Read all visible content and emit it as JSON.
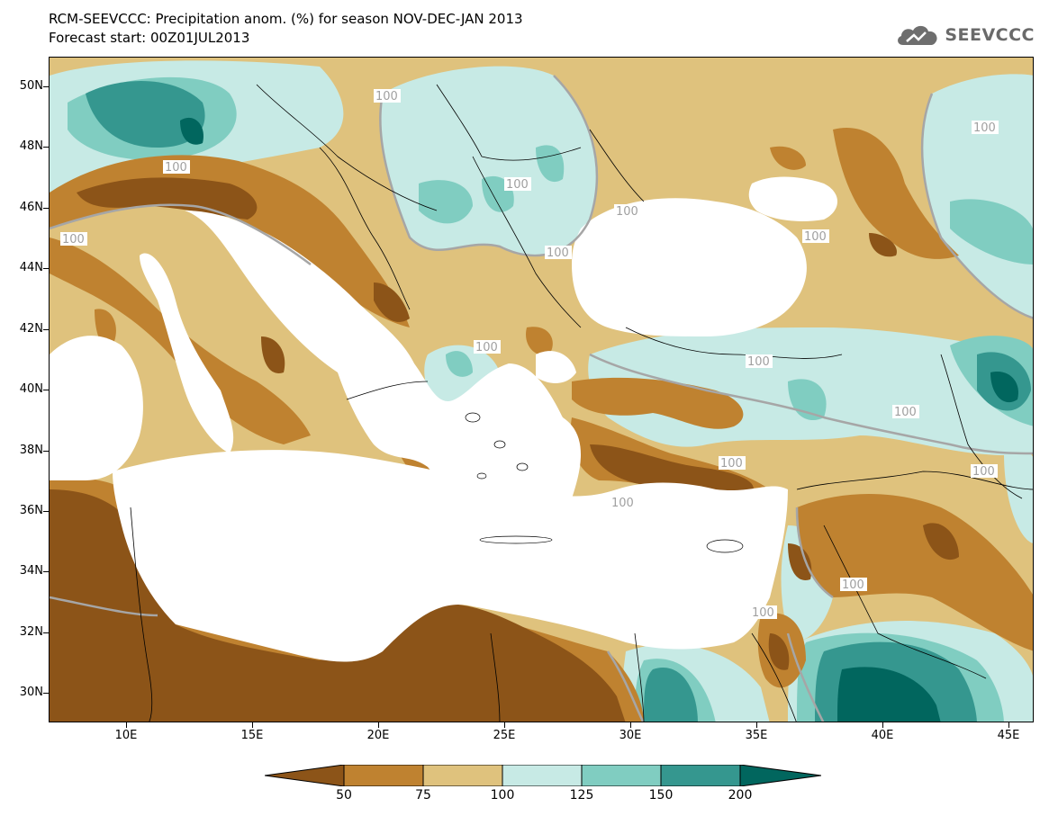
{
  "header": {
    "title_line1": "RCM-SEEVCCC: Precipitation anom. (%) for season NOV-DEC-JAN 2013",
    "title_line2": "Forecast start: 00Z01JUL2013",
    "logo_text": "SEEVCCC"
  },
  "map": {
    "lat_labels": [
      "50N",
      "48N",
      "46N",
      "44N",
      "42N",
      "40N",
      "38N",
      "36N",
      "34N",
      "32N",
      "30N"
    ],
    "lon_labels": [
      "10E",
      "15E",
      "20E",
      "25E",
      "30E",
      "35E",
      "40E",
      "45E"
    ],
    "contour_labels": [
      "100",
      "100",
      "100",
      "100",
      "100",
      "100",
      "100",
      "100",
      "100",
      "100",
      "100",
      "100",
      "100",
      "100",
      "100",
      "100"
    ],
    "colors": {
      "below_50": "#8c5418",
      "50_75": "#bf8230",
      "75_100": "#dfc27d",
      "100_125": "#c7eae5",
      "125_150": "#80cdc1",
      "150_200": "#35978f",
      "above_200": "#01665e",
      "sea": "#ffffff",
      "contour_100": "#a6a6a6",
      "border": "#000000"
    }
  },
  "colorbar": {
    "tick_labels": [
      "50",
      "75",
      "100",
      "125",
      "150",
      "200"
    ],
    "colors": [
      "#8c5418",
      "#bf8230",
      "#dfc27d",
      "#c7eae5",
      "#80cdc1",
      "#35978f",
      "#01665e"
    ]
  }
}
